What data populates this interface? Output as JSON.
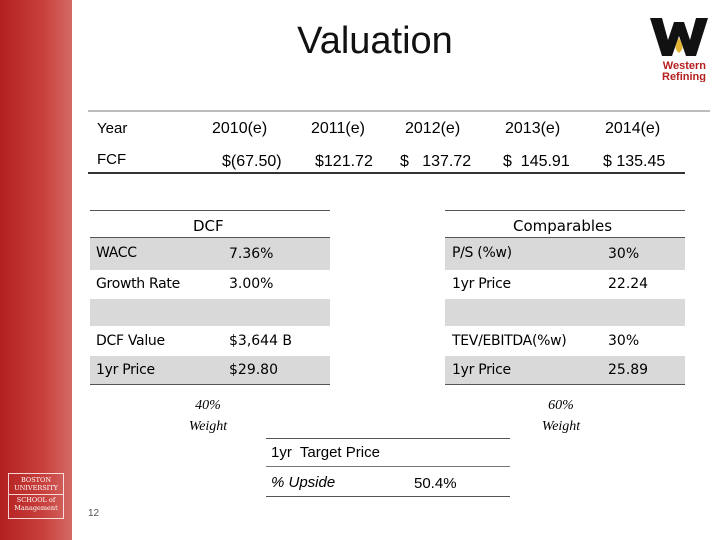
{
  "title": "Valuation",
  "logo": {
    "name": "Western Refining",
    "line1": "Western",
    "line2": "Refining"
  },
  "school_logo": {
    "lines": [
      "BOSTON",
      "UNIVERSITY",
      "SCHOOL of",
      "Management"
    ]
  },
  "page_number": "12",
  "year_table": {
    "year_label": "Year",
    "fcf_label": "FCF",
    "years": [
      "2010(e)",
      "2011(e)",
      "2012(e)",
      "2013(e)",
      "2014(e)"
    ],
    "fcf": [
      "$(67.50)",
      "$121.72",
      "$   137.72",
      "$  145.91",
      "$ 135.45"
    ]
  },
  "dcf": {
    "header": "DCF",
    "rows": [
      {
        "label": "WACC",
        "value": "7.36%"
      },
      {
        "label": "Growth Rate",
        "value": "3.00%"
      },
      {
        "label": "",
        "value": ""
      },
      {
        "label": "DCF Value",
        "value": "$3,644 B"
      },
      {
        "label": "1yr Price",
        "value": "$29.80"
      }
    ],
    "weight_pct": "40%",
    "weight_label": "Weight"
  },
  "comparables": {
    "header": "Comparables",
    "rows": [
      {
        "label": "P/S",
        "suffix": " (%w)",
        "value": "30%"
      },
      {
        "label": "1yr Price",
        "suffix": "",
        "value": "22.24"
      },
      {
        "label": "",
        "suffix": "",
        "value": ""
      },
      {
        "label": "TEV/EBITDA",
        "suffix": "(%w)",
        "value": "30%"
      },
      {
        "label": "1yr Price",
        "suffix": "",
        "value": "25.89"
      }
    ],
    "weight_pct": "60%",
    "weight_label": "Weight"
  },
  "target": {
    "label": "1yr  Target Price",
    "upside_label": "% Upside",
    "upside_value": "50.4%"
  },
  "colors": {
    "sidebar": "#b3201f",
    "shade": "#d9d9d9",
    "rule": "#bcbcbc"
  }
}
